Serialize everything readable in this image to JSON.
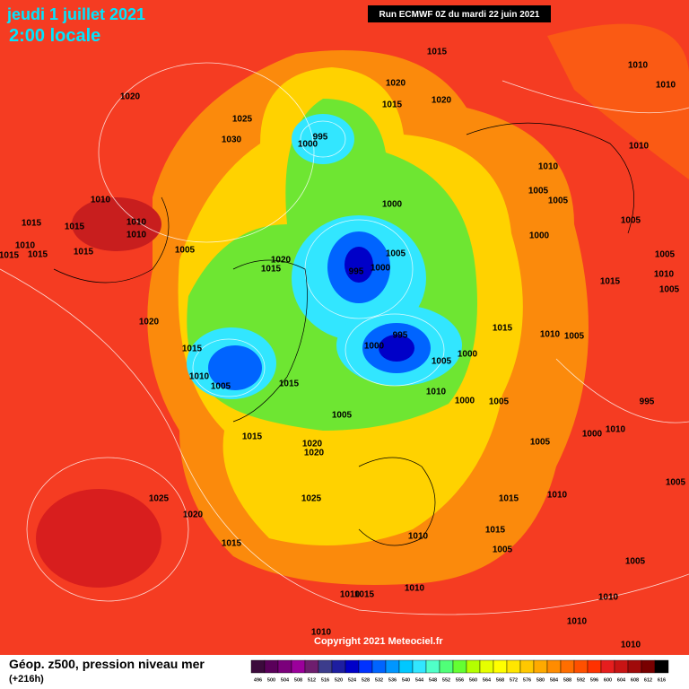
{
  "header": {
    "date": "jeudi 1 juillet 2021",
    "time": "2:00 locale",
    "run": "Run ECMWF 0Z du mardi 22 juin 2021"
  },
  "footer": {
    "title": "Géop. z500, pression niveau mer",
    "lead": "(+216h)",
    "copyright": "Copyright 2021 Meteociel.fr"
  },
  "colorbar": {
    "values": [
      496,
      500,
      504,
      508,
      512,
      516,
      520,
      524,
      528,
      532,
      536,
      540,
      544,
      548,
      552,
      556,
      560,
      564,
      568,
      572,
      576,
      580,
      584,
      588,
      592,
      596,
      600,
      604,
      608,
      612,
      616
    ],
    "colors": [
      "#3c0a3c",
      "#5a005a",
      "#7b007b",
      "#9b009b",
      "#6e1e6e",
      "#3c3c8c",
      "#1e1ea0",
      "#0000c8",
      "#0032ff",
      "#0064ff",
      "#0096ff",
      "#00c8ff",
      "#32e6ff",
      "#50ffc8",
      "#50ff78",
      "#64ff32",
      "#b4ff00",
      "#e6ff00",
      "#ffff00",
      "#ffe600",
      "#ffc800",
      "#ffaa00",
      "#ff8c00",
      "#ff6e00",
      "#ff5000",
      "#ff3200",
      "#e61e1e",
      "#c81414",
      "#a00a0a",
      "#780000",
      "#000000"
    ]
  },
  "isobar_labels": [
    1015,
    1010,
    1010,
    1020,
    1020,
    1015,
    1020,
    1025,
    1030,
    995,
    1000,
    1010,
    1010,
    1010,
    1005,
    1005,
    1000,
    1010,
    1015,
    1015,
    1010,
    1010,
    1015,
    1015,
    1015,
    1005,
    1005,
    1000,
    1020,
    1015,
    995,
    1000,
    1005,
    1005,
    1015,
    1010,
    1005,
    1020,
    1015,
    1010,
    1005,
    995,
    1000,
    1015,
    1005,
    1000,
    1010,
    1005,
    1015,
    1010,
    1000,
    1005,
    995,
    1005,
    1015,
    1020,
    1020,
    1005,
    1000,
    1010,
    1025,
    1020,
    1025,
    1015,
    1010,
    1005,
    1010,
    1015,
    1005,
    1015,
    1005,
    1010,
    1015,
    1010,
    1010,
    1010,
    1010,
    1010
  ]
}
